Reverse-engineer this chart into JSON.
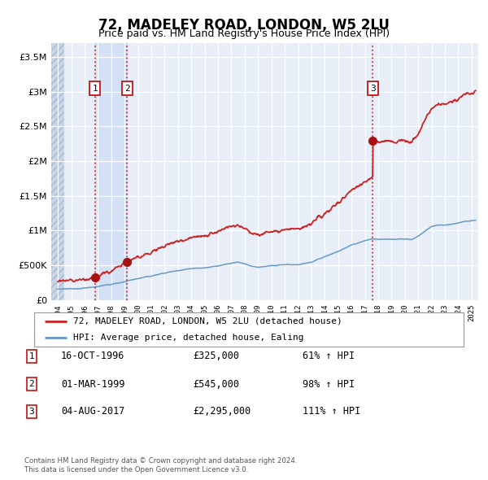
{
  "title": "72, MADELEY ROAD, LONDON, W5 2LU",
  "subtitle": "Price paid vs. HM Land Registry's House Price Index (HPI)",
  "ylabel_ticks": [
    "£0",
    "£500K",
    "£1M",
    "£1.5M",
    "£2M",
    "£2.5M",
    "£3M",
    "£3.5M"
  ],
  "ylabel_values": [
    0,
    500000,
    1000000,
    1500000,
    2000000,
    2500000,
    3000000,
    3500000
  ],
  "ylim": [
    0,
    3700000
  ],
  "xlim_start": 1993.5,
  "xlim_end": 2025.5,
  "plot_start": 1994.5,
  "xticks": [
    1994,
    1995,
    1996,
    1997,
    1998,
    1999,
    2000,
    2001,
    2002,
    2003,
    2004,
    2005,
    2006,
    2007,
    2008,
    2009,
    2010,
    2011,
    2012,
    2013,
    2014,
    2015,
    2016,
    2017,
    2018,
    2019,
    2020,
    2021,
    2022,
    2023,
    2024,
    2025
  ],
  "background_color": "#ffffff",
  "plot_bg_color": "#e8eef8",
  "hatch_color": "#c8d4e8",
  "grid_color": "#ffffff",
  "hpi_line_color": "#6699cc",
  "price_line_color": "#cc2222",
  "dot_color": "#aa1111",
  "dot_size": 7,
  "transactions": [
    {
      "date_x": 1996.79,
      "price": 325000,
      "label": "1"
    },
    {
      "date_x": 1999.17,
      "price": 545000,
      "label": "2"
    },
    {
      "date_x": 2017.59,
      "price": 2295000,
      "label": "3"
    }
  ],
  "vline_color": "#cc3333",
  "shade_color": "#c8d8f0",
  "legend_entries": [
    "72, MADELEY ROAD, LONDON, W5 2LU (detached house)",
    "HPI: Average price, detached house, Ealing"
  ],
  "table_rows": [
    {
      "num": "1",
      "date": "16-OCT-1996",
      "price": "£325,000",
      "pct": "61% ↑ HPI"
    },
    {
      "num": "2",
      "date": "01-MAR-1999",
      "price": "£545,000",
      "pct": "98% ↑ HPI"
    },
    {
      "num": "3",
      "date": "04-AUG-2017",
      "price": "£2,295,000",
      "pct": "111% ↑ HPI"
    }
  ],
  "footer1": "Contains HM Land Registry data © Crown copyright and database right 2024.",
  "footer2": "This data is licensed under the Open Government Licence v3.0."
}
